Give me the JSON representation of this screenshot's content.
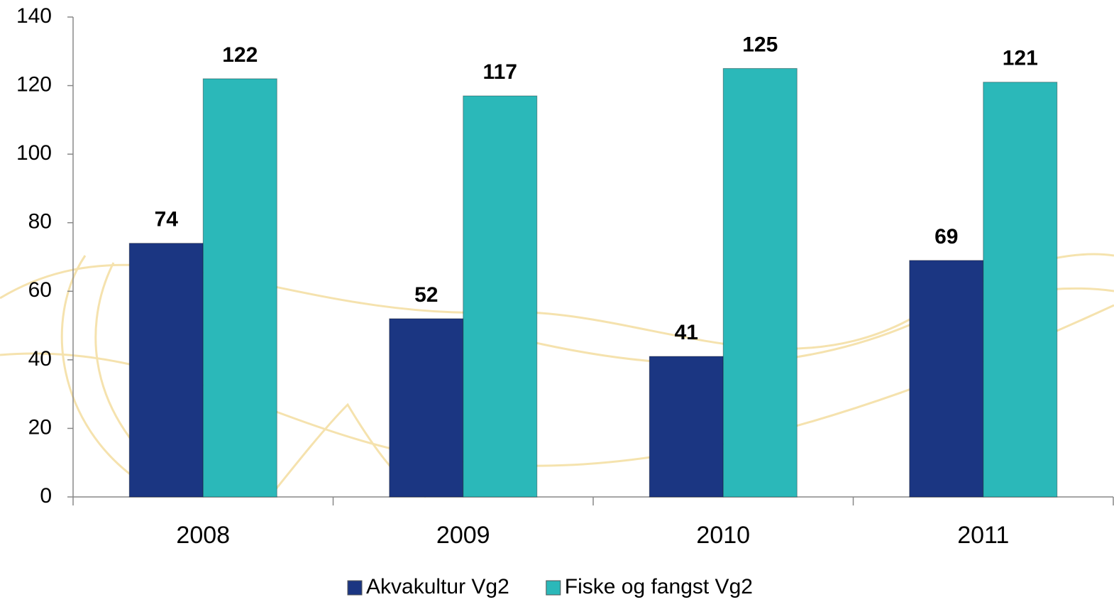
{
  "chart_data": {
    "type": "bar",
    "categories": [
      "2008",
      "2009",
      "2010",
      "2011"
    ],
    "series": [
      {
        "name": "Akvakultur Vg2",
        "color": "#1b3682",
        "values": [
          74,
          52,
          41,
          69
        ]
      },
      {
        "name": "Fiske og fangst Vg2",
        "color": "#2bb8b9",
        "values": [
          122,
          117,
          125,
          121
        ]
      }
    ],
    "ylim": [
      0,
      140
    ],
    "yticks": [
      0,
      20,
      40,
      60,
      80,
      100,
      120,
      140
    ],
    "grid": false,
    "legend": "bottom"
  }
}
